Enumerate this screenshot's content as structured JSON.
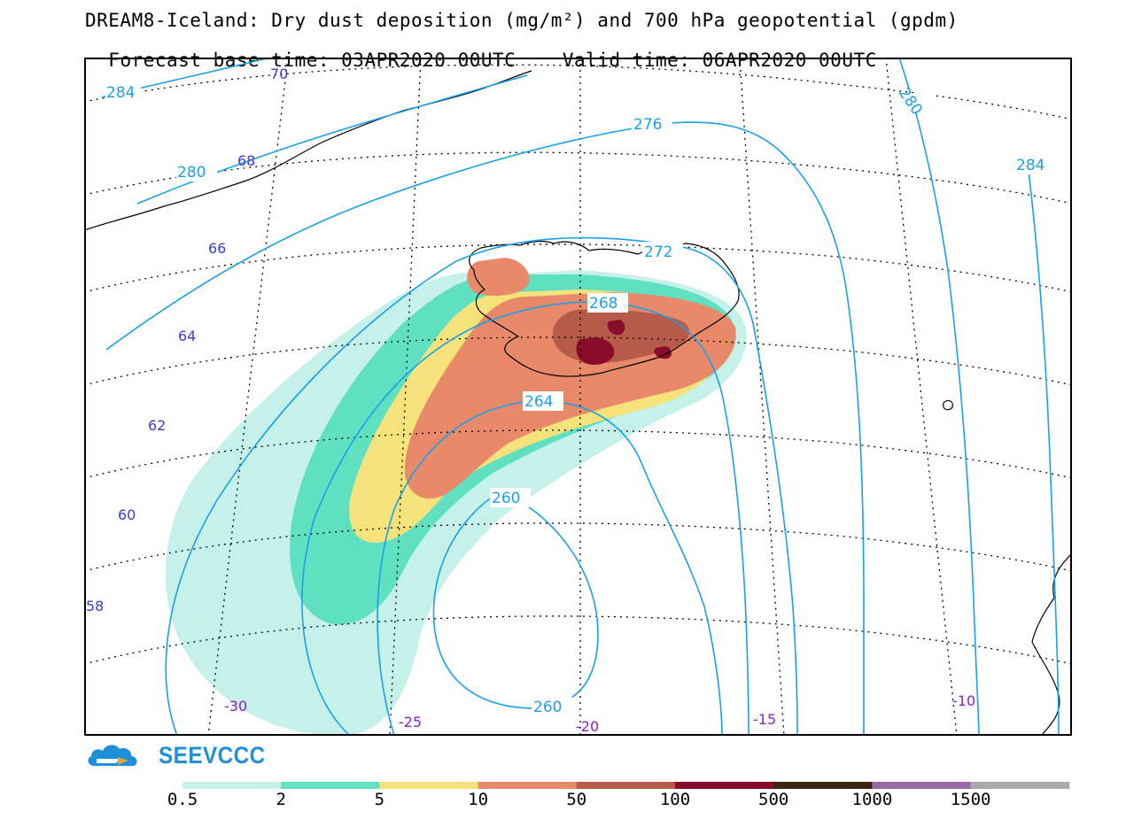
{
  "header": {
    "title_line1": "DREAM8-Iceland: Dry dust deposition (mg/m²) and 700 hPa geopotential (gpdm)",
    "base_time_label": "Forecast base time: 03APR2020 00UTC",
    "valid_time_label": "Valid time: 06APR2020 00UTC"
  },
  "map": {
    "lat_labels": [
      "70",
      "68",
      "66",
      "64",
      "62",
      "60",
      "58"
    ],
    "lon_labels": [
      "-30",
      "-25",
      "-20",
      "-15",
      "-10"
    ],
    "contour_labels": [
      "284",
      "280",
      "276",
      "272",
      "268",
      "264",
      "260",
      "260",
      "280",
      "284"
    ],
    "colors": {
      "contour": "#1aa0e8",
      "coast": "#000000",
      "grid": "#000000"
    }
  },
  "legend": {
    "thresholds": [
      "0.5",
      "2",
      "5",
      "10",
      "50",
      "100",
      "500",
      "1000",
      "1500"
    ],
    "colors": [
      "#c6f1ea",
      "#5fe0c1",
      "#f6e27a",
      "#e8896a",
      "#b65a4a",
      "#8a0c2c",
      "#3b2410",
      "#9a6aa6",
      "#aaaaaa"
    ]
  },
  "brand": {
    "name": "SEEVCCC",
    "accent": "#1e90d9"
  }
}
